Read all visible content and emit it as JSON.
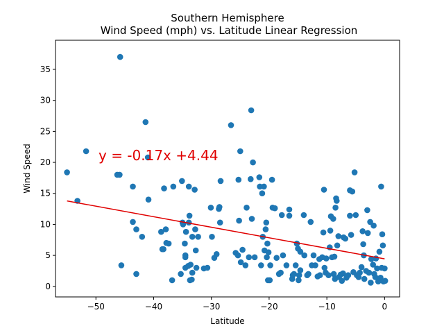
{
  "chart_data": {
    "type": "scatter",
    "title": "Southern Hemisphere",
    "subtitle": "Wind Speed (mph) vs. Latitude Linear Regression",
    "xlabel": "Latitude",
    "ylabel": "Wind Speed",
    "xlim": [
      -57,
      2.6
    ],
    "ylim": [
      -1.7,
      39.7
    ],
    "xticks": [
      -50,
      -40,
      -30,
      -20,
      -10,
      0
    ],
    "yticks": [
      0,
      5,
      10,
      15,
      20,
      25,
      30,
      35
    ],
    "grid": false,
    "point_color": "#1f77b4",
    "regression": {
      "equation": "y = -0.17x +4.44",
      "slope": -0.17,
      "intercept": 4.44,
      "x_range": [
        -55,
        0
      ],
      "color": "#e00000"
    },
    "points": [
      [
        -55.0,
        18.4
      ],
      [
        -53.2,
        13.8
      ],
      [
        -51.7,
        21.8
      ],
      [
        -46.3,
        18.0
      ],
      [
        -45.9,
        18.0
      ],
      [
        -45.8,
        37.0
      ],
      [
        -45.6,
        3.4
      ],
      [
        -43.6,
        16.1
      ],
      [
        -43.6,
        10.4
      ],
      [
        -43.0,
        9.2
      ],
      [
        -43.0,
        2.0
      ],
      [
        -42.0,
        8.0
      ],
      [
        -41.4,
        26.5
      ],
      [
        -41.0,
        20.8
      ],
      [
        -40.9,
        14.0
      ],
      [
        -38.7,
        8.8
      ],
      [
        -38.5,
        6.0
      ],
      [
        -38.3,
        6.0
      ],
      [
        -38.2,
        15.8
      ],
      [
        -37.9,
        9.2
      ],
      [
        -37.8,
        7.0
      ],
      [
        -37.4,
        6.9
      ],
      [
        -36.8,
        1.0
      ],
      [
        -36.6,
        16.1
      ],
      [
        -35.3,
        2.0
      ],
      [
        -35.1,
        17.0
      ],
      [
        -35.0,
        10.3
      ],
      [
        -34.9,
        10.0
      ],
      [
        -34.6,
        6.9
      ],
      [
        -34.5,
        3.0
      ],
      [
        -34.5,
        4.7
      ],
      [
        -34.5,
        5.0
      ],
      [
        -34.4,
        8.8
      ],
      [
        -34.0,
        3.3
      ],
      [
        -33.9,
        16.1
      ],
      [
        -33.9,
        10.3
      ],
      [
        -33.8,
        11.4
      ],
      [
        -33.7,
        1.0
      ],
      [
        -33.6,
        3.5
      ],
      [
        -33.4,
        1.1
      ],
      [
        -33.3,
        2.2
      ],
      [
        -33.3,
        8.0
      ],
      [
        -32.9,
        15.6
      ],
      [
        -32.8,
        9.2
      ],
      [
        -32.7,
        5.8
      ],
      [
        -32.6,
        3.0
      ],
      [
        -32.3,
        8.0
      ],
      [
        -31.3,
        2.9
      ],
      [
        -30.7,
        3.0
      ],
      [
        -30.1,
        12.7
      ],
      [
        -29.9,
        8.0
      ],
      [
        -29.5,
        4.6
      ],
      [
        -29.1,
        5.2
      ],
      [
        -28.7,
        12.5
      ],
      [
        -28.6,
        12.8
      ],
      [
        -28.5,
        10.3
      ],
      [
        -28.4,
        17.0
      ],
      [
        -26.6,
        26.0
      ],
      [
        -25.8,
        5.4
      ],
      [
        -25.4,
        5.0
      ],
      [
        -25.3,
        17.2
      ],
      [
        -25.2,
        10.6
      ],
      [
        -25.0,
        21.8
      ],
      [
        -24.9,
        3.9
      ],
      [
        -24.6,
        5.9
      ],
      [
        -24.1,
        3.4
      ],
      [
        -23.9,
        12.7
      ],
      [
        -23.5,
        4.7
      ],
      [
        -23.2,
        17.3
      ],
      [
        -23.1,
        28.4
      ],
      [
        -23.0,
        10.9
      ],
      [
        -22.8,
        20.0
      ],
      [
        -22.5,
        4.7
      ],
      [
        -21.7,
        17.6
      ],
      [
        -21.6,
        16.1
      ],
      [
        -21.4,
        3.4
      ],
      [
        -21.2,
        15.0
      ],
      [
        -21.1,
        8.0
      ],
      [
        -20.9,
        16.1
      ],
      [
        -20.8,
        5.8
      ],
      [
        -20.6,
        9.2
      ],
      [
        -20.5,
        10.3
      ],
      [
        -20.4,
        4.7
      ],
      [
        -20.3,
        6.9
      ],
      [
        -20.2,
        1.0
      ],
      [
        -20.1,
        5.5
      ],
      [
        -19.9,
        1.0
      ],
      [
        -19.8,
        3.4
      ],
      [
        -19.5,
        17.2
      ],
      [
        -19.4,
        12.7
      ],
      [
        -19.0,
        12.6
      ],
      [
        -18.7,
        4.6
      ],
      [
        -18.3,
        2.0
      ],
      [
        -18.0,
        2.2
      ],
      [
        -17.8,
        11.5
      ],
      [
        -17.6,
        5.0
      ],
      [
        -17.0,
        3.4
      ],
      [
        -16.5,
        12.4
      ],
      [
        -16.5,
        11.4
      ],
      [
        -16.0,
        1.2
      ],
      [
        -15.9,
        1.8
      ],
      [
        -15.7,
        2.0
      ],
      [
        -15.4,
        3.4
      ],
      [
        -15.2,
        6.9
      ],
      [
        -15.0,
        6.1
      ],
      [
        -14.9,
        1.0
      ],
      [
        -14.8,
        1.8
      ],
      [
        -14.6,
        5.6
      ],
      [
        -14.6,
        2.6
      ],
      [
        -14.0,
        11.5
      ],
      [
        -13.9,
        5.0
      ],
      [
        -13.4,
        1.8
      ],
      [
        -13.2,
        2.0
      ],
      [
        -12.8,
        10.4
      ],
      [
        -12.6,
        3.4
      ],
      [
        -12.3,
        5.0
      ],
      [
        -12.0,
        3.4
      ],
      [
        -11.6,
        1.6
      ],
      [
        -11.3,
        4.4
      ],
      [
        -11.2,
        1.8
      ],
      [
        -10.8,
        4.7
      ],
      [
        -10.6,
        8.7
      ],
      [
        -10.5,
        15.6
      ],
      [
        -10.4,
        3.0
      ],
      [
        -10.2,
        2.2
      ],
      [
        -10.1,
        4.5
      ],
      [
        -9.7,
        1.8
      ],
      [
        -9.5,
        6.3
      ],
      [
        -9.4,
        9.0
      ],
      [
        -9.3,
        11.3
      ],
      [
        -9.1,
        4.7
      ],
      [
        -8.9,
        10.9
      ],
      [
        -8.8,
        2.0
      ],
      [
        -8.7,
        4.8
      ],
      [
        -8.6,
        1.2
      ],
      [
        -8.5,
        12.7
      ],
      [
        -8.4,
        14.2
      ],
      [
        -8.3,
        13.8
      ],
      [
        -8.2,
        6.6
      ],
      [
        -8.0,
        8.1
      ],
      [
        -7.9,
        1.5
      ],
      [
        -7.6,
        1.9
      ],
      [
        -7.4,
        0.9
      ],
      [
        -7.2,
        2.1
      ],
      [
        -7.1,
        7.9
      ],
      [
        -6.8,
        7.7
      ],
      [
        -6.6,
        1.4
      ],
      [
        -6.3,
        1.8
      ],
      [
        -6.0,
        15.5
      ],
      [
        -6.0,
        11.4
      ],
      [
        -5.8,
        8.3
      ],
      [
        -5.6,
        15.3
      ],
      [
        -5.4,
        2.3
      ],
      [
        -5.2,
        18.4
      ],
      [
        -5.0,
        11.5
      ],
      [
        -4.8,
        1.8
      ],
      [
        -4.5,
        1.5
      ],
      [
        -4.3,
        2.2
      ],
      [
        -4.0,
        3.1
      ],
      [
        -3.8,
        8.9
      ],
      [
        -3.7,
        6.8
      ],
      [
        -3.6,
        5.0
      ],
      [
        -3.5,
        1.2
      ],
      [
        -3.2,
        2.5
      ],
      [
        -3.0,
        12.3
      ],
      [
        -2.9,
        8.6
      ],
      [
        -2.7,
        2.2
      ],
      [
        -2.5,
        10.4
      ],
      [
        -2.4,
        0.6
      ],
      [
        -2.3,
        4.4
      ],
      [
        -2.0,
        3.5
      ],
      [
        -1.9,
        9.8
      ],
      [
        -1.8,
        2.0
      ],
      [
        -1.6,
        1.5
      ],
      [
        -1.5,
        4.5
      ],
      [
        -1.3,
        2.9
      ],
      [
        -1.1,
        0.8
      ],
      [
        -0.9,
        5.6
      ],
      [
        -0.7,
        1.4
      ],
      [
        -0.6,
        16.1
      ],
      [
        -0.5,
        3.0
      ],
      [
        -0.4,
        8.4
      ],
      [
        -0.3,
        6.6
      ],
      [
        -0.2,
        0.8
      ],
      [
        0.0,
        2.9
      ],
      [
        0.1,
        0.9
      ]
    ]
  }
}
